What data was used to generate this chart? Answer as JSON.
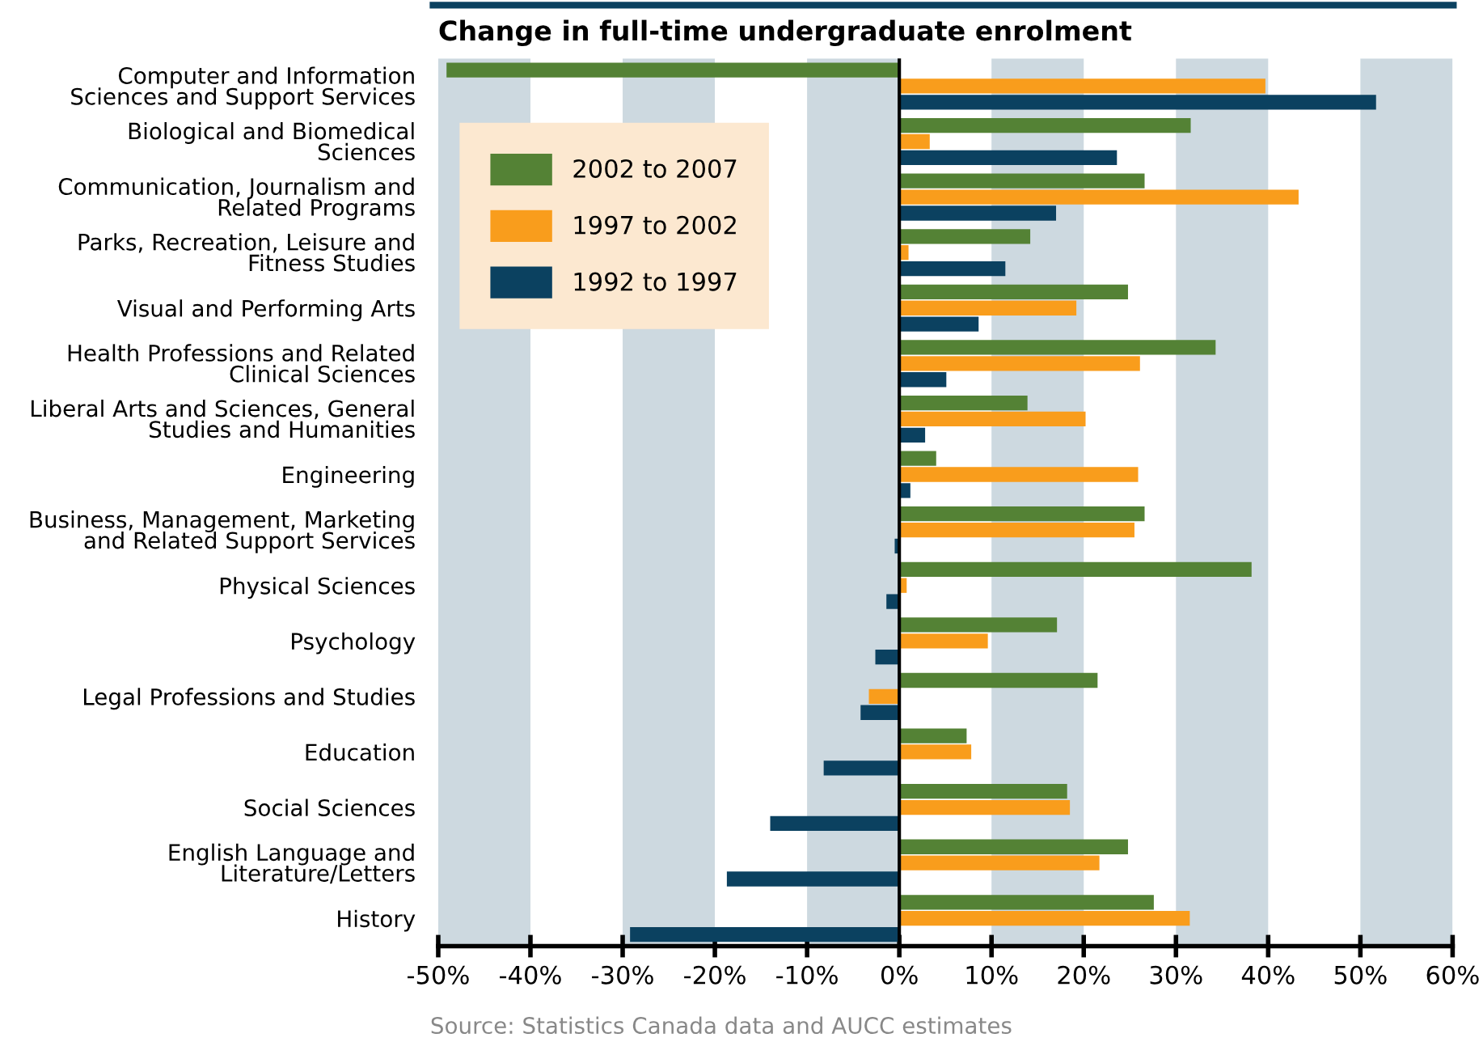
{
  "chart_data": {
    "type": "bar",
    "orientation": "horizontal",
    "title": "Change in full-time undergraduate enrolment",
    "categories": [
      "Computer and Information\nSciences and Support Services",
      "Biological and Biomedical\nSciences",
      "Communication, Journalism and\nRelated Programs",
      "Parks, Recreation, Leisure and\nFitness Studies",
      "Visual and Performing Arts",
      "Health Professions and Related\nClinical Sciences",
      "Liberal Arts and Sciences, General\nStudies and Humanities",
      "Engineering",
      "Business, Management, Marketing\nand Related Support Services",
      "Physical Sciences",
      "Psychology",
      "Legal Professions and Studies",
      "Education",
      "Social Sciences",
      "English Language and\nLiterature/Letters",
      "History"
    ],
    "series": [
      {
        "name": "2002 to 2007",
        "color": "#548235",
        "values": [
          -49.1,
          31.6,
          26.6,
          14.2,
          24.8,
          34.3,
          13.9,
          4.0,
          26.6,
          38.2,
          17.1,
          21.5,
          7.3,
          18.2,
          24.8,
          27.6
        ]
      },
      {
        "name": "1997 to 2002",
        "color": "#f99d1c",
        "values": [
          39.7,
          3.3,
          43.3,
          1.0,
          19.2,
          26.1,
          20.2,
          25.9,
          25.5,
          0.8,
          9.6,
          -3.3,
          7.8,
          18.5,
          21.7,
          31.5
        ]
      },
      {
        "name": "1992 to 1997",
        "color": "#0b4160",
        "values": [
          51.7,
          23.6,
          17.0,
          11.5,
          8.6,
          5.1,
          2.8,
          1.2,
          -0.5,
          -1.4,
          -2.6,
          -4.2,
          -8.2,
          -14.0,
          -18.7,
          -29.2
        ]
      }
    ],
    "xlim": [
      -50,
      60
    ],
    "xticks": [
      {
        "value": -50,
        "label": "-50%"
      },
      {
        "value": -40,
        "label": "-40%"
      },
      {
        "value": -30,
        "label": "-30%"
      },
      {
        "value": -20,
        "label": "-20%"
      },
      {
        "value": -10,
        "label": "-10%"
      },
      {
        "value": 0,
        "label": "0%"
      },
      {
        "value": 10,
        "label": "10%"
      },
      {
        "value": 20,
        "label": "20%"
      },
      {
        "value": 30,
        "label": "30%"
      },
      {
        "value": 40,
        "label": "40%"
      },
      {
        "value": 50,
        "label": "50%"
      },
      {
        "value": 60,
        "label": "60%"
      }
    ],
    "bands": [
      {
        "axis": "x",
        "from": -50,
        "to": -40,
        "color": "#cdd9e0"
      },
      {
        "axis": "x",
        "from": -30,
        "to": -20,
        "color": "#cdd9e0"
      },
      {
        "axis": "x",
        "from": -10,
        "to": 0,
        "color": "#cdd9e0"
      },
      {
        "axis": "x",
        "from": 10,
        "to": 20,
        "color": "#cdd9e0"
      },
      {
        "axis": "x",
        "from": 30,
        "to": 40,
        "color": "#cdd9e0"
      },
      {
        "axis": "x",
        "from": 50,
        "to": 60,
        "color": "#cdd9e0"
      }
    ],
    "ref_lines": [
      {
        "axis": "x",
        "value": 0,
        "color": "#000000"
      }
    ],
    "legend": "top left",
    "grid": false,
    "annotations": [
      "Source: Statistics Canada data and AUCC estimates"
    ]
  }
}
